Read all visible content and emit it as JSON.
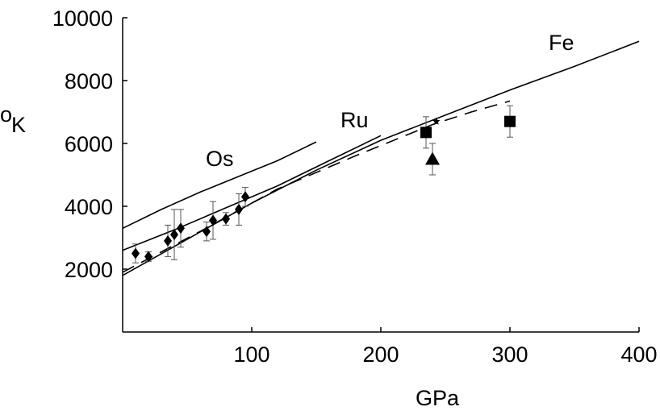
{
  "chart_data": {
    "type": "scatter",
    "title": "",
    "xlabel": "GPa",
    "ylabel_main": "K",
    "ylabel_sup": "o",
    "xlim": [
      0,
      400
    ],
    "ylim": [
      0,
      10000
    ],
    "x_ticks": [
      100,
      200,
      300,
      400
    ],
    "y_ticks": [
      2000,
      4000,
      6000,
      8000,
      10000
    ],
    "grid": false,
    "curves": [
      {
        "label": "Os",
        "style": "solid",
        "points": [
          [
            0,
            3300
          ],
          [
            30,
            3900
          ],
          [
            60,
            4450
          ],
          [
            90,
            4950
          ],
          [
            120,
            5450
          ],
          [
            150,
            6050
          ]
        ]
      },
      {
        "label": "Ru",
        "style": "solid",
        "points": [
          [
            0,
            2600
          ],
          [
            40,
            3250
          ],
          [
            80,
            3950
          ],
          [
            120,
            4650
          ],
          [
            160,
            5450
          ],
          [
            200,
            6250
          ]
        ]
      },
      {
        "label": "Fe",
        "style": "solid",
        "points": [
          [
            0,
            1800
          ],
          [
            50,
            2950
          ],
          [
            100,
            4100
          ],
          [
            150,
            5150
          ],
          [
            200,
            6100
          ],
          [
            250,
            6900
          ],
          [
            300,
            7700
          ],
          [
            350,
            8450
          ],
          [
            400,
            9250
          ]
        ]
      },
      {
        "label": "",
        "style": "dashed",
        "points": [
          [
            0,
            1900
          ],
          [
            60,
            3200
          ],
          [
            120,
            4550
          ],
          [
            180,
            5600
          ],
          [
            240,
            6600
          ],
          [
            270,
            7000
          ],
          [
            300,
            7350
          ]
        ]
      }
    ],
    "diamonds": [
      {
        "x": 10,
        "y": 2500,
        "err": 300
      },
      {
        "x": 20,
        "y": 2400,
        "err": 150
      },
      {
        "x": 35,
        "y": 2900,
        "err": 500
      },
      {
        "x": 40,
        "y": 3100,
        "err": 800
      },
      {
        "x": 45,
        "y": 3300,
        "err": 600
      },
      {
        "x": 65,
        "y": 3200,
        "err": 300
      },
      {
        "x": 70,
        "y": 3550,
        "err": 600
      },
      {
        "x": 80,
        "y": 3600,
        "err": 200
      },
      {
        "x": 90,
        "y": 3900,
        "err": 500
      },
      {
        "x": 95,
        "y": 4300,
        "err": 300
      }
    ],
    "squares": [
      {
        "x": 235,
        "y": 6350,
        "err": 500
      },
      {
        "x": 300,
        "y": 6700,
        "err": 500
      }
    ],
    "triangles": [
      {
        "x": 240,
        "y": 5500,
        "err": 500
      }
    ],
    "stars": [
      {
        "x": 243,
        "y": 6700
      }
    ]
  }
}
